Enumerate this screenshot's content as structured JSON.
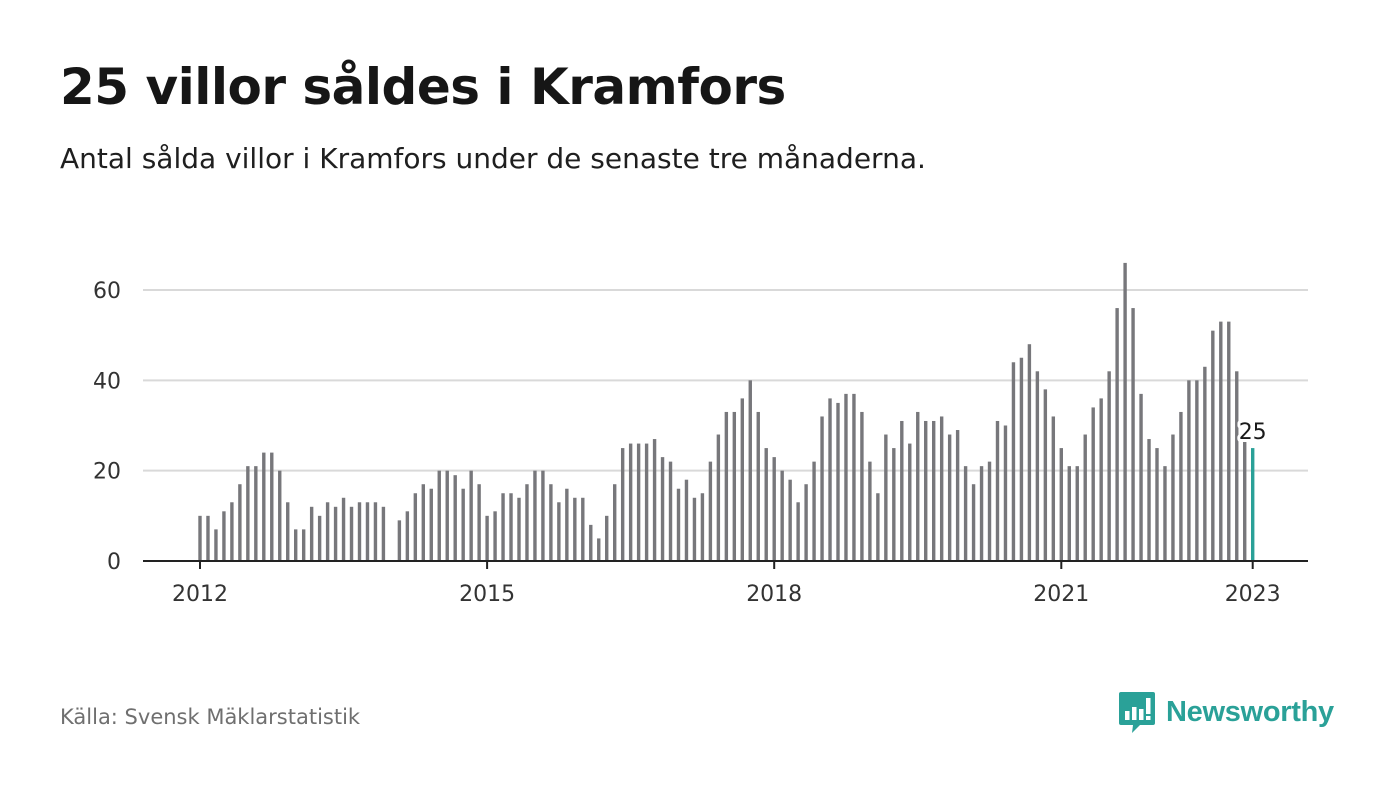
{
  "header": {
    "title": "25 villor såldes i Kramfors",
    "subtitle": "Antal sålda villor i Kramfors under de senaste tre månaderna."
  },
  "footer": {
    "source": "Källa: Svensk Mäklarstatistik",
    "brand": "Newsworthy",
    "brand_icon": "bar-chart-speech-bubble-icon"
  },
  "colors": {
    "bar": "#77777b",
    "highlight": "#2aa198",
    "grid": "#d9d9d9",
    "axis": "#222222",
    "brand": "#2aa198"
  },
  "chart_data": {
    "type": "bar",
    "x_start": "2012-01",
    "x_step": "month",
    "values": [
      10,
      10,
      7,
      11,
      13,
      17,
      21,
      21,
      24,
      24,
      20,
      13,
      7,
      7,
      12,
      10,
      13,
      12,
      14,
      12,
      13,
      13,
      13,
      12,
      null,
      9,
      11,
      15,
      17,
      16,
      20,
      20,
      19,
      16,
      20,
      17,
      10,
      11,
      15,
      15,
      14,
      17,
      20,
      20,
      17,
      13,
      16,
      14,
      14,
      8,
      5,
      10,
      17,
      25,
      26,
      26,
      26,
      27,
      23,
      22,
      16,
      18,
      14,
      15,
      22,
      28,
      33,
      33,
      36,
      40,
      33,
      25,
      23,
      20,
      18,
      13,
      17,
      22,
      32,
      36,
      35,
      37,
      37,
      33,
      22,
      15,
      28,
      25,
      31,
      26,
      33,
      31,
      31,
      32,
      28,
      29,
      21,
      17,
      21,
      22,
      31,
      30,
      44,
      45,
      48,
      42,
      38,
      32,
      25,
      21,
      21,
      28,
      34,
      36,
      42,
      56,
      66,
      56,
      37,
      27,
      25,
      21,
      28,
      33,
      40,
      40,
      43,
      51,
      53,
      53,
      42,
      28,
      25
    ],
    "highlight_last": true,
    "last_label": "25",
    "x_ticks": [
      "2012",
      "2015",
      "2018",
      "2021",
      "2023"
    ],
    "y_ticks": [
      0,
      20,
      40,
      60
    ],
    "ylim": [
      0,
      66
    ],
    "grid": true,
    "legend": "none",
    "xlabel": "",
    "ylabel": ""
  }
}
